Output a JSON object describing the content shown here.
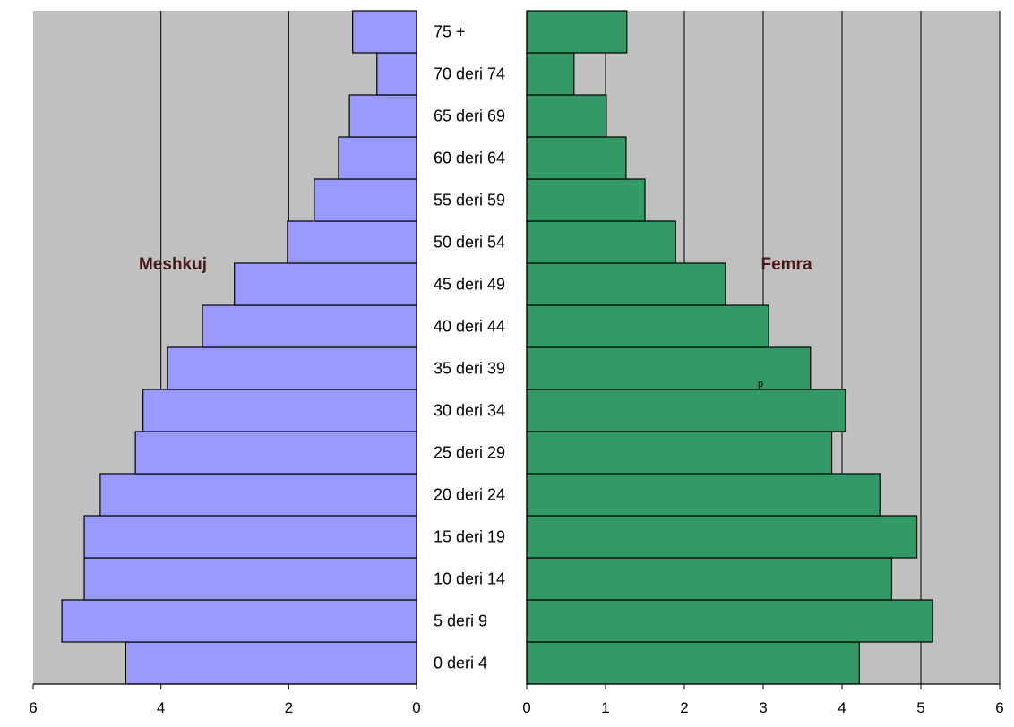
{
  "chart_data": {
    "type": "bar",
    "orientation": "horizontal",
    "layout": "population-pyramid",
    "categories": [
      "0 deri 4",
      "5 deri 9",
      "10 deri 14",
      "15 deri 19",
      "20 deri 24",
      "25 deri 29",
      "30 deri 34",
      "35 deri 39",
      "40 deri 44",
      "45 deri 49",
      "50 deri 54",
      "55 deri 59",
      "60 deri 64",
      "65 deri 69",
      "70 deri 74",
      "75 +"
    ],
    "series": [
      {
        "name": "Meshkuj",
        "values": [
          4.55,
          5.55,
          5.2,
          5.2,
          4.95,
          4.4,
          4.28,
          3.9,
          3.35,
          2.85,
          2.02,
          1.6,
          1.22,
          1.05,
          0.62,
          1.0
        ],
        "color": "#9999ff"
      },
      {
        "name": "Femra",
        "values": [
          4.22,
          5.15,
          4.63,
          4.95,
          4.48,
          3.87,
          4.04,
          3.6,
          3.07,
          2.52,
          1.89,
          1.5,
          1.26,
          1.01,
          0.6,
          1.27
        ],
        "color": "#339966"
      }
    ],
    "left_axis": {
      "range": [
        0,
        6
      ],
      "ticks": [
        6,
        4,
        2,
        0
      ],
      "reversed": true
    },
    "right_axis": {
      "range": [
        0,
        6
      ],
      "ticks": [
        0,
        1,
        2,
        3,
        4,
        5,
        6
      ]
    },
    "plot_background": "#c0c0c0",
    "grid": true,
    "annotation": "p"
  }
}
